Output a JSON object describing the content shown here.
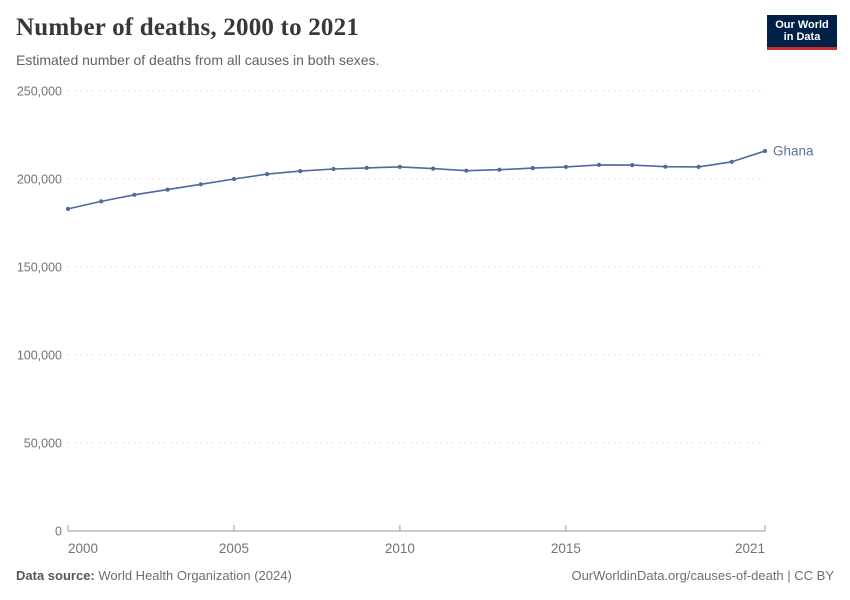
{
  "header": {
    "title": "Number of deaths, 2000 to 2021",
    "subtitle": "Estimated number of deaths from all causes in both sexes.",
    "logo": {
      "line1": "Our World",
      "line2": "in Data"
    }
  },
  "chart_data": {
    "type": "line",
    "title": "Number of deaths, 2000 to 2021",
    "xlabel": "",
    "ylabel": "",
    "x": [
      2000,
      2001,
      2002,
      2003,
      2004,
      2005,
      2006,
      2007,
      2008,
      2009,
      2010,
      2011,
      2012,
      2013,
      2014,
      2015,
      2016,
      2017,
      2018,
      2019,
      2020,
      2021
    ],
    "series": [
      {
        "name": "Ghana",
        "color": "#4c6a9c",
        "label_color": "#587299",
        "values": [
          183000,
          187300,
          191000,
          194000,
          197000,
          200000,
          202800,
          204500,
          205700,
          206300,
          206900,
          205900,
          204700,
          205300,
          206200,
          206900,
          208000,
          207900,
          207000,
          206900,
          209800,
          215900
        ]
      }
    ],
    "xlim": [
      2000,
      2021
    ],
    "ylim": [
      0,
      250000
    ],
    "xticks": [
      2000,
      2005,
      2010,
      2015,
      2021
    ],
    "yticks": [
      0,
      50000,
      100000,
      150000,
      200000,
      250000
    ],
    "grid": "horizontal-dashed",
    "legend_position": "end-of-line"
  },
  "footer": {
    "source_label": "Data source:",
    "source_value": " World Health Organization (2024)",
    "link": "OurWorldinData.org/causes-of-death | CC BY"
  },
  "colors": {
    "line": "#4c6a9c",
    "series_label": "#587299",
    "gridline": "#e0e0e0",
    "axis": "#999999",
    "tick_text": "#737373",
    "logo_bg": "#002147",
    "logo_red": "#c9302c"
  }
}
